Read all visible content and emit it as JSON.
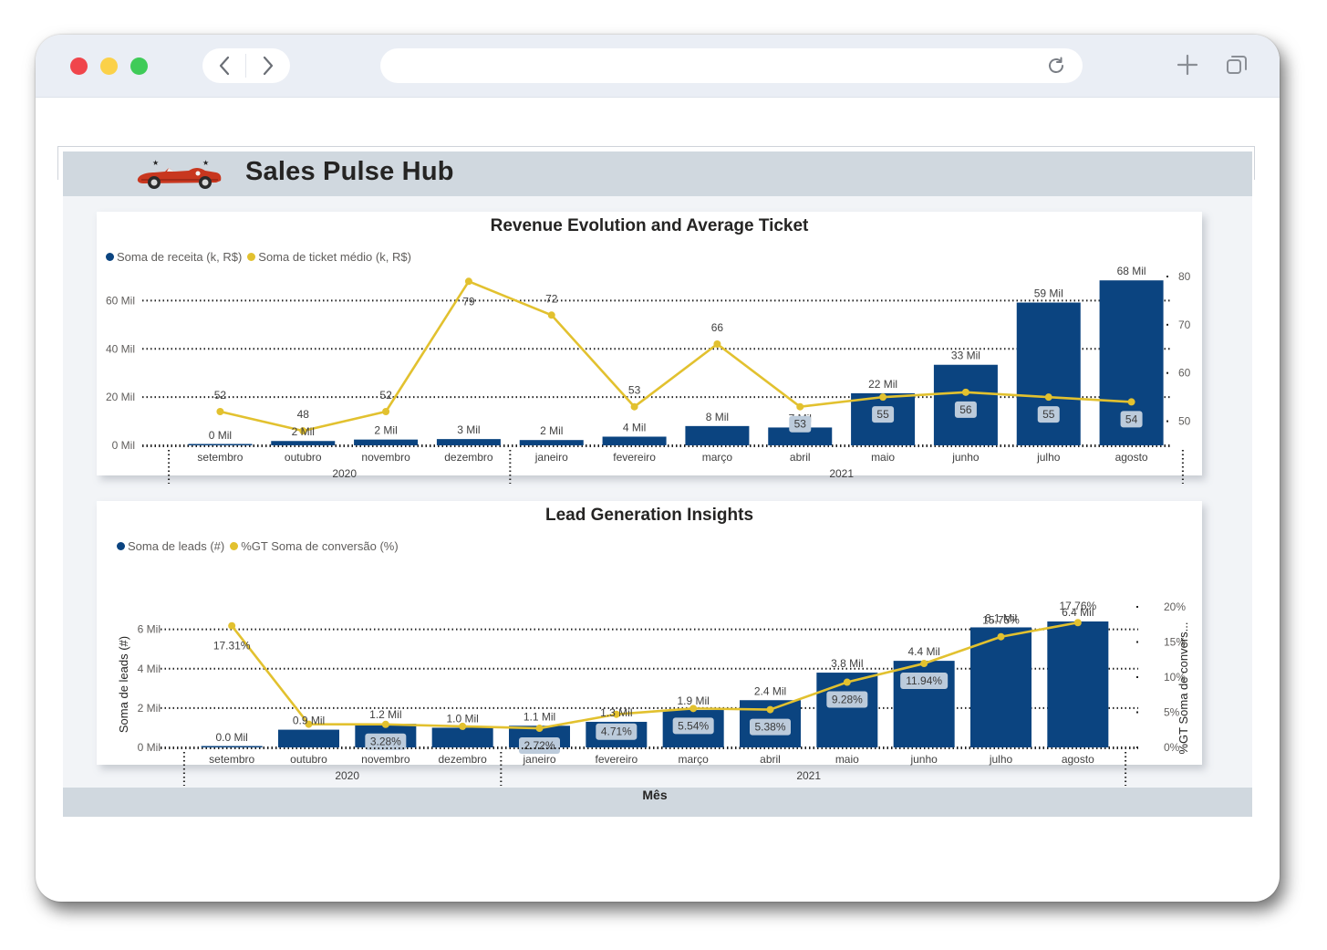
{
  "page_title": "Sales Pulse Hub",
  "colors": {
    "bar": "#0b4480",
    "line": "#e2c12f",
    "label_box": "#bccbdb"
  },
  "chart_data": [
    {
      "type": "bar",
      "title": "Revenue Evolution and Average Ticket",
      "categories": [
        "setembro",
        "outubro",
        "novembro",
        "dezembro",
        "janeiro",
        "fevereiro",
        "março",
        "abril",
        "maio",
        "junho",
        "julho",
        "agosto"
      ],
      "year_groups": [
        {
          "label": "2020",
          "months": 4
        },
        {
          "label": "2021",
          "months": 8
        }
      ],
      "series": [
        {
          "name": "Soma de receita (k, R$)",
          "type": "bar",
          "axis": "left",
          "values": [
            0.3,
            1.8,
            2.4,
            2.6,
            2.2,
            3.6,
            8.0,
            7.4,
            21.6,
            33.4,
            59.2,
            68.4
          ],
          "labels": [
            "0 Mil",
            "2 Mil",
            "2 Mil",
            "3 Mil",
            "2 Mil",
            "4 Mil",
            "8 Mil",
            "7 Mil",
            "22 Mil",
            "33 Mil",
            "59 Mil",
            "68 Mil"
          ]
        },
        {
          "name": "Soma de ticket médio (k, R$)",
          "type": "line",
          "axis": "right",
          "values": [
            52,
            48,
            52,
            79,
            72,
            53,
            66,
            53,
            55,
            56,
            55,
            54
          ],
          "labels": [
            "52",
            "48",
            "52",
            "79",
            "72",
            "53",
            "66",
            "53",
            "55",
            "56",
            "55",
            "54"
          ]
        }
      ],
      "ylim_left": [
        0,
        70
      ],
      "yticks_left": [
        "0 Mil",
        "20 Mil",
        "40 Mil",
        "60 Mil"
      ],
      "ylim_right": [
        45,
        80
      ],
      "yticks_right": [
        "50",
        "60",
        "70",
        "80"
      ],
      "grid": true,
      "legend": "top-left"
    },
    {
      "type": "bar",
      "title": "Lead Generation Insights",
      "xlabel": "Mês",
      "ylabel": "Soma de leads (#)",
      "ylabel_right": "%GT Soma de convers...",
      "categories": [
        "setembro",
        "outubro",
        "novembro",
        "dezembro",
        "janeiro",
        "fevereiro",
        "março",
        "abril",
        "maio",
        "junho",
        "julho",
        "agosto"
      ],
      "year_groups": [
        {
          "label": "2020",
          "months": 4
        },
        {
          "label": "2021",
          "months": 8
        }
      ],
      "series": [
        {
          "name": "Soma de leads (#)",
          "type": "bar",
          "axis": "left",
          "values": [
            0.04,
            0.9,
            1.2,
            1.0,
            1.1,
            1.3,
            1.9,
            2.4,
            3.8,
            4.4,
            6.1,
            6.4
          ],
          "labels": [
            "0.0 Mil",
            "0.9 Mil",
            "1.2 Mil",
            "1.0 Mil",
            "1.1 Mil",
            "1.3 Mil",
            "1.9 Mil",
            "2.4 Mil",
            "3.8 Mil",
            "4.4 Mil",
            "6.1 Mil",
            "6.4 Mil"
          ]
        },
        {
          "name": "%GT Soma de conversão (%)",
          "type": "line",
          "axis": "right",
          "values": [
            17.31,
            3.3,
            3.28,
            3.0,
            2.72,
            4.71,
            5.54,
            5.38,
            9.28,
            11.94,
            15.75,
            17.76
          ],
          "labels": [
            "17.31%",
            "",
            "3.28%",
            "",
            "2.72%",
            "4.71%",
            "5.54%",
            "5.38%",
            "9.28%",
            "11.94%",
            "15.75%",
            "17.76%"
          ]
        }
      ],
      "ylim_left": [
        0,
        6.4
      ],
      "yticks_left": [
        "0 Mil",
        "2 Mil",
        "4 Mil",
        "6 Mil"
      ],
      "ylim_right": [
        0,
        20
      ],
      "yticks_right": [
        "0%",
        "5%",
        "10%",
        "15%",
        "20%"
      ],
      "grid": true,
      "legend": "top-left"
    }
  ]
}
